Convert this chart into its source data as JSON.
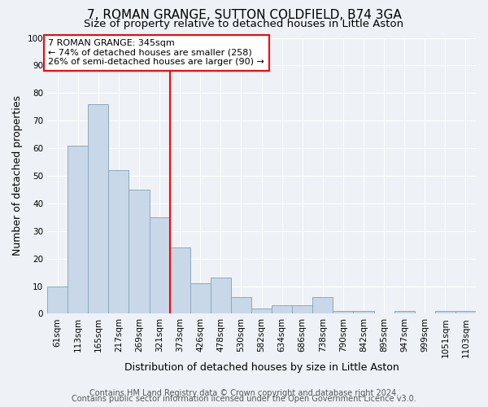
{
  "title": "7, ROMAN GRANGE, SUTTON COLDFIELD, B74 3GA",
  "subtitle": "Size of property relative to detached houses in Little Aston",
  "xlabel": "Distribution of detached houses by size in Little Aston",
  "ylabel": "Number of detached properties",
  "footnote1": "Contains HM Land Registry data © Crown copyright and database right 2024.",
  "footnote2": "Contains public sector information licensed under the Open Government Licence v3.0.",
  "categories": [
    "61sqm",
    "113sqm",
    "165sqm",
    "217sqm",
    "269sqm",
    "321sqm",
    "373sqm",
    "426sqm",
    "478sqm",
    "530sqm",
    "582sqm",
    "634sqm",
    "686sqm",
    "738sqm",
    "790sqm",
    "842sqm",
    "895sqm",
    "947sqm",
    "999sqm",
    "1051sqm",
    "1103sqm"
  ],
  "values": [
    10,
    61,
    76,
    52,
    45,
    35,
    24,
    11,
    13,
    6,
    2,
    3,
    3,
    6,
    1,
    1,
    0,
    1,
    0,
    1,
    1
  ],
  "bar_color": "#c8d8e8",
  "bar_edge_color": "#8aaabb",
  "vline_x": 5.5,
  "vline_color": "red",
  "annotation_text": "7 ROMAN GRANGE: 345sqm\n← 74% of detached houses are smaller (258)\n26% of semi-detached houses are larger (90) →",
  "annotation_box_color": "white",
  "annotation_box_edge_color": "red",
  "ylim": [
    0,
    100
  ],
  "yticks": [
    0,
    10,
    20,
    30,
    40,
    50,
    60,
    70,
    80,
    90,
    100
  ],
  "background_color": "#eef2f7",
  "grid_color": "white",
  "title_fontsize": 11,
  "subtitle_fontsize": 9.5,
  "axis_label_fontsize": 9,
  "tick_fontsize": 7.5,
  "footnote_fontsize": 7
}
